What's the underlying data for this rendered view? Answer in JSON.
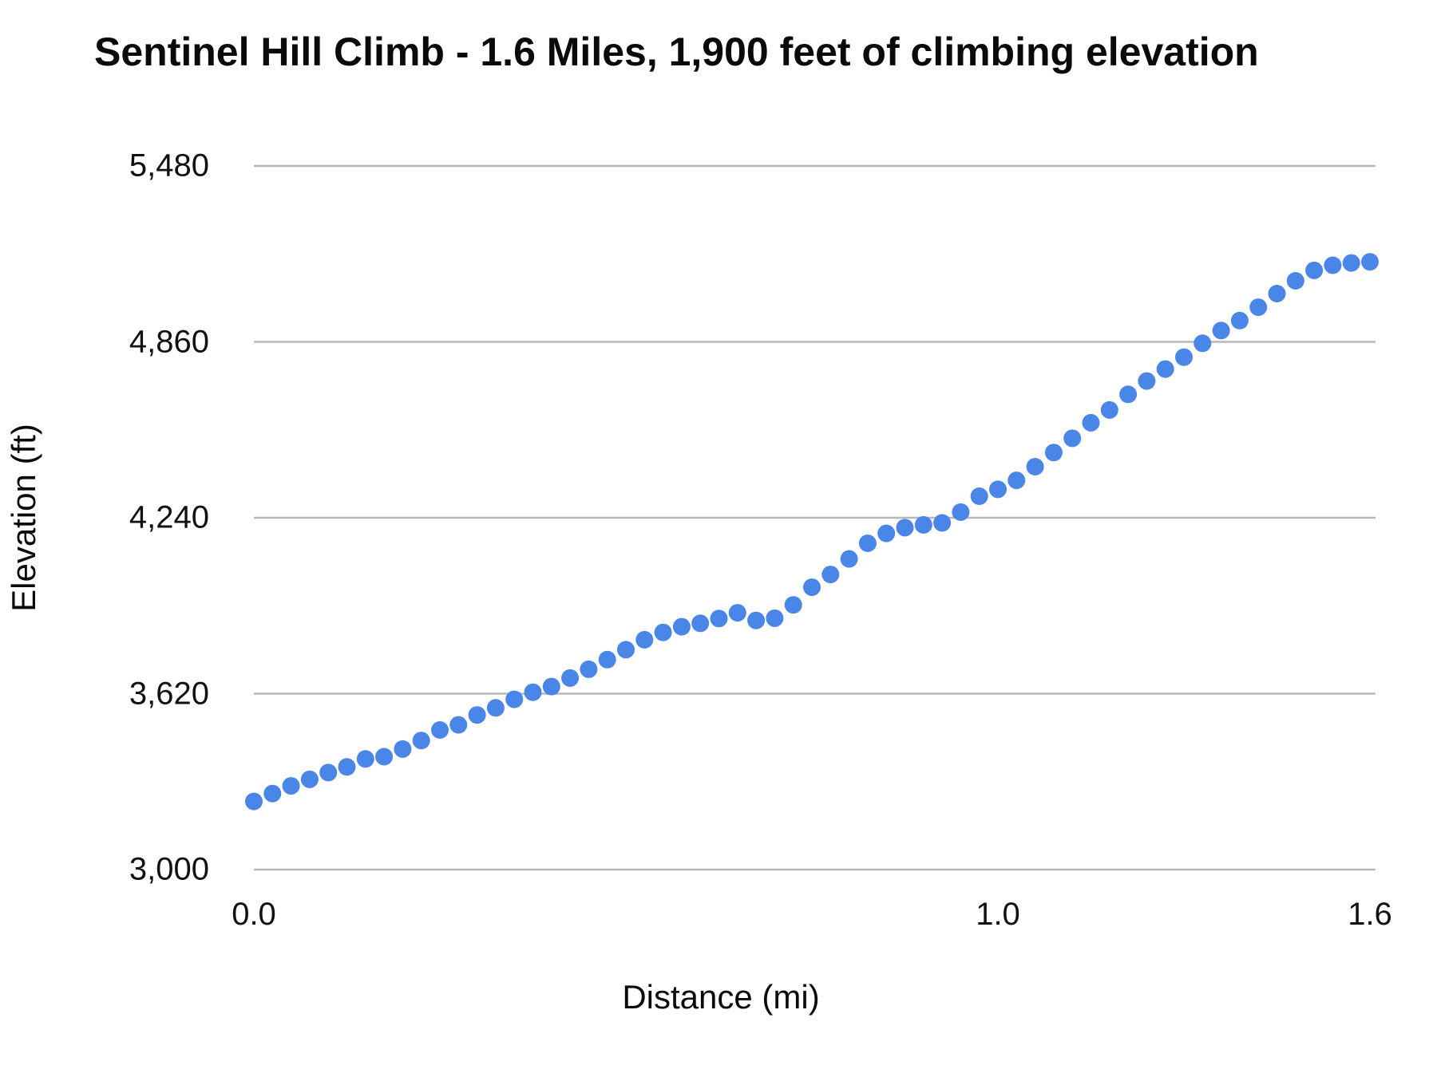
{
  "chart_data": {
    "type": "scatter",
    "title": "Sentinel Hill Climb - 1.6 Miles, 1,900 feet of climbing elevation",
    "xlabel": "Distance (mi)",
    "ylabel": "Elevation (ft)",
    "x": [
      0.0,
      0.025,
      0.05,
      0.075,
      0.1,
      0.125,
      0.15,
      0.175,
      0.2,
      0.225,
      0.25,
      0.275,
      0.3,
      0.325,
      0.35,
      0.375,
      0.4,
      0.425,
      0.45,
      0.475,
      0.5,
      0.525,
      0.55,
      0.575,
      0.6,
      0.625,
      0.65,
      0.675,
      0.7,
      0.725,
      0.75,
      0.775,
      0.8,
      0.825,
      0.85,
      0.875,
      0.9,
      0.925,
      0.95,
      0.975,
      1.0,
      1.03,
      1.06,
      1.09,
      1.12,
      1.15,
      1.18,
      1.21,
      1.24,
      1.27,
      1.3,
      1.33,
      1.36,
      1.39,
      1.42,
      1.45,
      1.48,
      1.51,
      1.54,
      1.57,
      1.6
    ],
    "y": [
      3240,
      3268,
      3295,
      3318,
      3342,
      3362,
      3390,
      3398,
      3425,
      3455,
      3492,
      3510,
      3545,
      3570,
      3600,
      3625,
      3645,
      3675,
      3706,
      3740,
      3775,
      3810,
      3836,
      3856,
      3868,
      3885,
      3905,
      3878,
      3886,
      3933,
      3995,
      4040,
      4095,
      4150,
      4185,
      4205,
      4215,
      4222,
      4260,
      4316,
      4340,
      4372,
      4420,
      4470,
      4520,
      4575,
      4620,
      4675,
      4722,
      4764,
      4806,
      4855,
      4900,
      4935,
      4982,
      5030,
      5075,
      5112,
      5130,
      5138,
      5142
    ],
    "ylim": [
      3000,
      5480
    ],
    "y_ticks": [
      3000,
      3620,
      4240,
      4860,
      5480
    ],
    "y_tick_labels": [
      "3,000",
      "3,620",
      "4,240",
      "4,860",
      "5,480"
    ],
    "x_tick_labels": [
      "0.0",
      "1.0",
      "1.6"
    ],
    "x_tick_indices": [
      0,
      40,
      60
    ],
    "grid": "horizontal",
    "legend": "none",
    "point_color": "#4a86e8",
    "grid_color": "#b7b7b7",
    "text_color": "#111111",
    "background_color": "#ffffff"
  }
}
